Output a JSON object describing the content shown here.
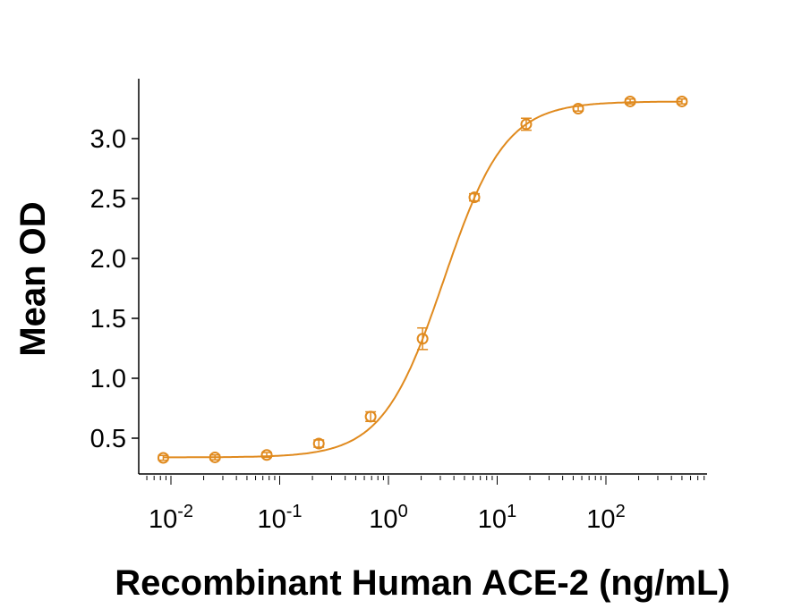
{
  "chart_data": {
    "type": "scatter",
    "title": "",
    "xlabel": "Recombinant Human ACE-2 (ng/mL)",
    "ylabel": "Mean OD",
    "x_scale": "log",
    "xlim": [
      0.006,
      700
    ],
    "ylim": [
      0.2,
      3.48
    ],
    "x_ticks": [
      {
        "value": 0.01,
        "base": "10",
        "exp": "-2"
      },
      {
        "value": 0.1,
        "base": "10",
        "exp": "-1"
      },
      {
        "value": 1,
        "base": "10",
        "exp": "0"
      },
      {
        "value": 10,
        "base": "10",
        "exp": "1"
      },
      {
        "value": 100,
        "base": "10",
        "exp": "2"
      }
    ],
    "y_ticks": [
      "0.5",
      "1.0",
      "1.5",
      "2.0",
      "2.5",
      "3.0"
    ],
    "grid": false,
    "color": "#E08A1E",
    "series": [
      {
        "x": [
          0.0085,
          0.0254,
          0.076,
          0.229,
          0.686,
          2.06,
          6.17,
          18.5,
          55.6,
          167,
          500
        ],
        "y": [
          0.336,
          0.34,
          0.36,
          0.455,
          0.68,
          1.33,
          2.51,
          3.12,
          3.25,
          3.31,
          3.31
        ],
        "error": [
          0.02,
          0.02,
          0.02,
          0.03,
          0.04,
          0.09,
          0.03,
          0.05,
          0.02,
          0.02,
          0.02
        ]
      }
    ],
    "fit": {
      "model": "4PL",
      "bottom": 0.34,
      "top": 3.31,
      "ec50": 3.24,
      "hill": 1.54
    }
  }
}
